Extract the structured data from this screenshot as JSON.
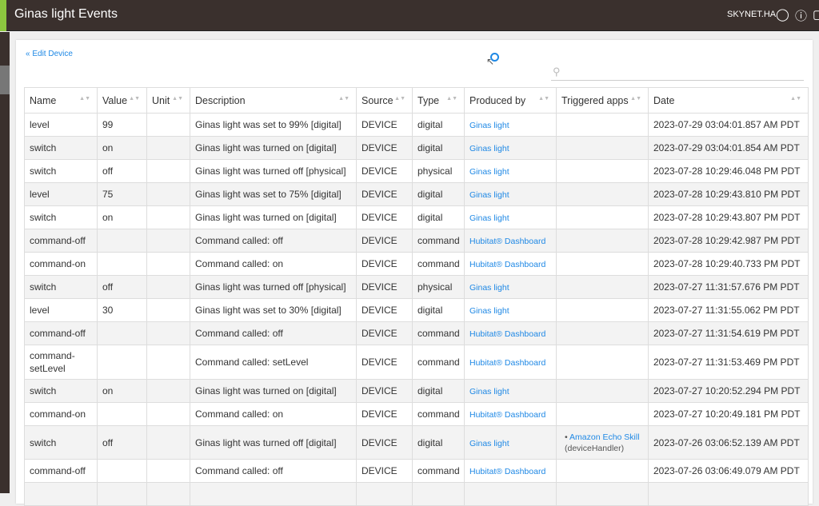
{
  "header": {
    "title": "Ginas light Events",
    "hub": "SKYNET.HA",
    "icons": [
      "chat-icon",
      "help-icon"
    ]
  },
  "edit_link": "« Edit Device",
  "search": {
    "placeholder": ""
  },
  "columns": [
    "Name",
    "Value",
    "Unit",
    "Description",
    "Source",
    "Type",
    "Produced by",
    "Triggered apps",
    "Date"
  ],
  "rows": [
    [
      "level",
      "99",
      "",
      "Ginas light was set to 99% [digital]",
      "DEVICE",
      "digital",
      "Ginas light",
      "",
      "2023-07-29 03:04:01.857 AM PDT"
    ],
    [
      "switch",
      "on",
      "",
      "Ginas light was turned on [digital]",
      "DEVICE",
      "digital",
      "Ginas light",
      "",
      "2023-07-29 03:04:01.854 AM PDT"
    ],
    [
      "switch",
      "off",
      "",
      "Ginas light was turned off [physical]",
      "DEVICE",
      "physical",
      "Ginas light",
      "",
      "2023-07-28 10:29:46.048 PM PDT"
    ],
    [
      "level",
      "75",
      "",
      "Ginas light was set to 75% [digital]",
      "DEVICE",
      "digital",
      "Ginas light",
      "",
      "2023-07-28 10:29:43.810 PM PDT"
    ],
    [
      "switch",
      "on",
      "",
      "Ginas light was turned on [digital]",
      "DEVICE",
      "digital",
      "Ginas light",
      "",
      "2023-07-28 10:29:43.807 PM PDT"
    ],
    [
      "command-off",
      "",
      "",
      "Command called: off",
      "DEVICE",
      "command",
      "Hubitat® Dashboard",
      "",
      "2023-07-28 10:29:42.987 PM PDT"
    ],
    [
      "command-on",
      "",
      "",
      "Command called: on",
      "DEVICE",
      "command",
      "Hubitat® Dashboard",
      "",
      "2023-07-28 10:29:40.733 PM PDT"
    ],
    [
      "switch",
      "off",
      "",
      "Ginas light was turned off [physical]",
      "DEVICE",
      "physical",
      "Ginas light",
      "",
      "2023-07-27 11:31:57.676 PM PDT"
    ],
    [
      "level",
      "30",
      "",
      "Ginas light was set to 30% [digital]",
      "DEVICE",
      "digital",
      "Ginas light",
      "",
      "2023-07-27 11:31:55.062 PM PDT"
    ],
    [
      "command-off",
      "",
      "",
      "Command called: off",
      "DEVICE",
      "command",
      "Hubitat® Dashboard",
      "",
      "2023-07-27 11:31:54.619 PM PDT"
    ],
    [
      "command-setLevel",
      "",
      "",
      "Command called: setLevel",
      "DEVICE",
      "command",
      "Hubitat® Dashboard",
      "",
      "2023-07-27 11:31:53.469 PM PDT"
    ],
    [
      "switch",
      "on",
      "",
      "Ginas light was turned on [digital]",
      "DEVICE",
      "digital",
      "Ginas light",
      "",
      "2023-07-27 10:20:52.294 PM PDT"
    ],
    [
      "command-on",
      "",
      "",
      "Command called: on",
      "DEVICE",
      "command",
      "Hubitat® Dashboard",
      "",
      "2023-07-27 10:20:49.181 PM PDT"
    ],
    [
      "switch",
      "off",
      "",
      "Ginas light was turned off [digital]",
      "DEVICE",
      "digital",
      "Ginas light",
      {
        "app": "Amazon Echo Skill",
        "detail": "(deviceHandler)"
      },
      "2023-07-26 03:06:52.139 AM PDT"
    ],
    [
      "command-off",
      "",
      "",
      "Command called: off",
      "DEVICE",
      "command",
      "Hubitat® Dashboard",
      "",
      "2023-07-26 03:06:49.079 AM PDT"
    ],
    [
      "",
      "",
      "",
      "",
      "",
      "",
      "",
      "",
      ""
    ]
  ]
}
